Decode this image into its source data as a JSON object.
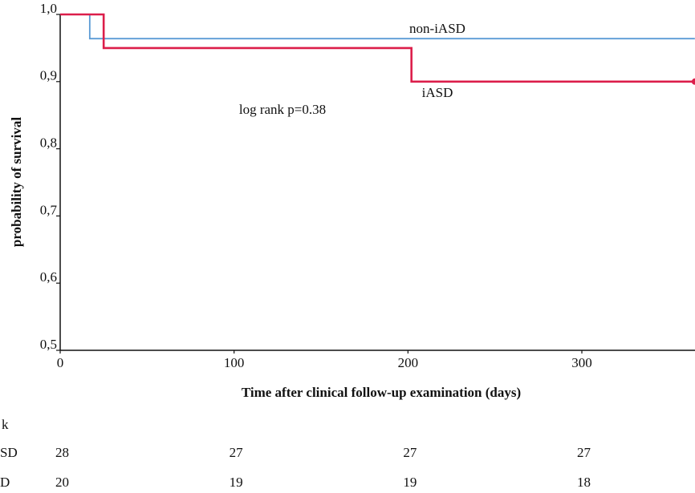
{
  "chart_data": {
    "type": "step",
    "ylabel": "probability of survival",
    "xlabel": "Time after clinical follow-up examination (days)",
    "annotation": "log rank p=0.38",
    "xlim": [
      0,
      365
    ],
    "ylim": [
      0.5,
      1.0
    ],
    "xticks": [
      0,
      100,
      200,
      300
    ],
    "yticks": [
      {
        "value": 0.5,
        "label": "0,5"
      },
      {
        "value": 0.6,
        "label": "0,6"
      },
      {
        "value": 0.7,
        "label": "0,7"
      },
      {
        "value": 0.8,
        "label": "0,8"
      },
      {
        "value": 0.9,
        "label": "0,9"
      },
      {
        "value": 1.0,
        "label": "1,0"
      }
    ],
    "series": [
      {
        "name": "non-iASD",
        "color": "#5b9bd5",
        "x": [
          0,
          17,
          365
        ],
        "values": [
          1.0,
          0.964,
          0.964
        ]
      },
      {
        "name": "iASD",
        "color": "#dc1e4a",
        "x": [
          0,
          25,
          202,
          365
        ],
        "values": [
          1.0,
          0.95,
          0.9,
          0.9
        ]
      }
    ],
    "risk_table": {
      "title": "k",
      "rows": [
        {
          "label": "SD",
          "values": [
            28,
            27,
            27,
            27
          ]
        },
        {
          "label": "D",
          "values": [
            20,
            19,
            19,
            18
          ]
        }
      ]
    }
  }
}
